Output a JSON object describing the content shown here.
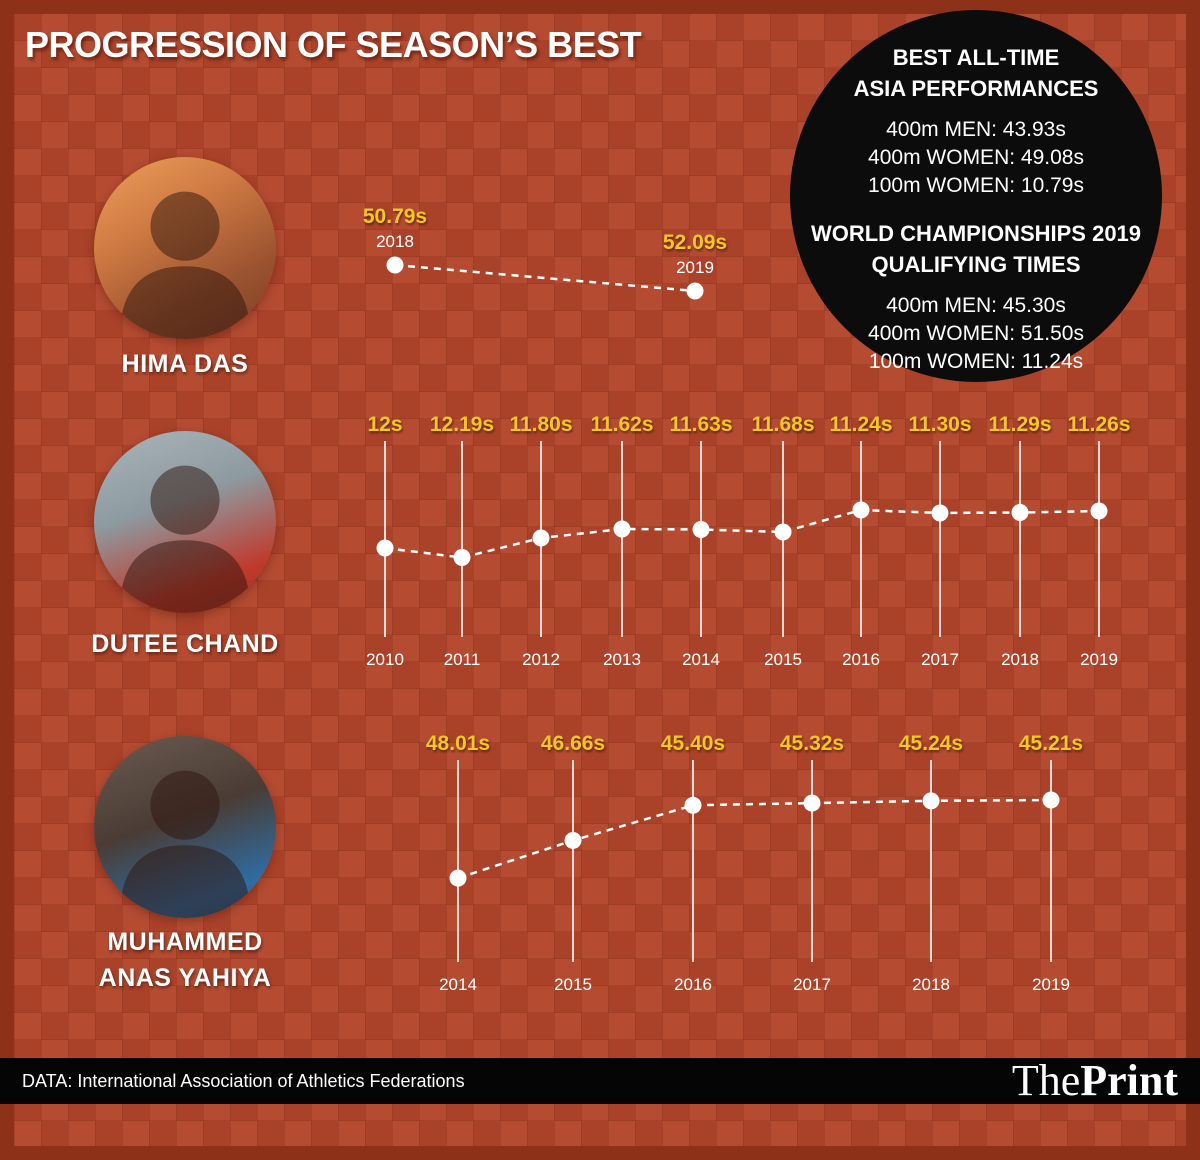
{
  "page": {
    "title": "PROGRESSION OF SEASON’S BEST",
    "footer_source": "DATA: International Association of Athletics Federations",
    "brand": {
      "the": "The",
      "print": "Print"
    }
  },
  "info_circle": {
    "section1_title_line1": "BEST ALL-TIME",
    "section1_title_line2": "ASIA PERFORMANCES",
    "section1_lines": [
      "400m MEN: 43.93s",
      "400m WOMEN: 49.08s",
      "100m WOMEN: 10.79s"
    ],
    "section2_title_line1": "WORLD CHAMPIONSHIPS 2019",
    "section2_title_line2": "QUALIFYING TIMES",
    "section2_lines": [
      "400m MEN: 45.30s",
      "400m WOMEN: 51.50s",
      "100m WOMEN: 11.24s"
    ]
  },
  "athletes": [
    {
      "name": "HIMA DAS",
      "name_lines": [
        "HIMA DAS"
      ]
    },
    {
      "name": "DUTEE CHAND",
      "name_lines": [
        "DUTEE CHAND"
      ]
    },
    {
      "name": "MUHAMMED ANAS YAHIYA",
      "name_lines": [
        "MUHAMMED",
        "ANAS YAHIYA"
      ]
    }
  ],
  "colors": {
    "background": "#b2452b",
    "frame": "#8e3119",
    "accent_yellow": "#f7c71f",
    "circle_black": "#0c0c0c",
    "white": "#ffffff"
  },
  "chart_data": [
    {
      "type": "line",
      "athlete": "HIMA DAS",
      "x": [
        "2018",
        "2019"
      ],
      "values": [
        50.79,
        52.09
      ],
      "value_labels": [
        "50.79s",
        "52.09s"
      ],
      "unit": "seconds",
      "style": "dashed-line-with-dots, labels above points"
    },
    {
      "type": "line",
      "athlete": "DUTEE CHAND",
      "x": [
        "2010",
        "2011",
        "2012",
        "2013",
        "2014",
        "2015",
        "2016",
        "2017",
        "2018",
        "2019"
      ],
      "values": [
        12.0,
        12.19,
        11.8,
        11.62,
        11.63,
        11.68,
        11.24,
        11.3,
        11.29,
        11.26
      ],
      "value_labels": [
        "12s",
        "12.19s",
        "11.80s",
        "11.62s",
        "11.63s",
        "11.68s",
        "11.24s",
        "11.30s",
        "11.29s",
        "11.26s"
      ],
      "unit": "seconds",
      "style": "dashed-line-with-dots, vertical guides, values top, years bottom"
    },
    {
      "type": "line",
      "athlete": "MUHAMMED ANAS YAHIYA",
      "x": [
        "2014",
        "2015",
        "2016",
        "2017",
        "2018",
        "2019"
      ],
      "values": [
        48.01,
        46.66,
        45.4,
        45.32,
        45.24,
        45.21
      ],
      "value_labels": [
        "48.01s",
        "46.66s",
        "45.40s",
        "45.32s",
        "45.24s",
        "45.21s"
      ],
      "unit": "seconds",
      "style": "dashed-line-with-dots, vertical guides, values top, years bottom"
    }
  ]
}
